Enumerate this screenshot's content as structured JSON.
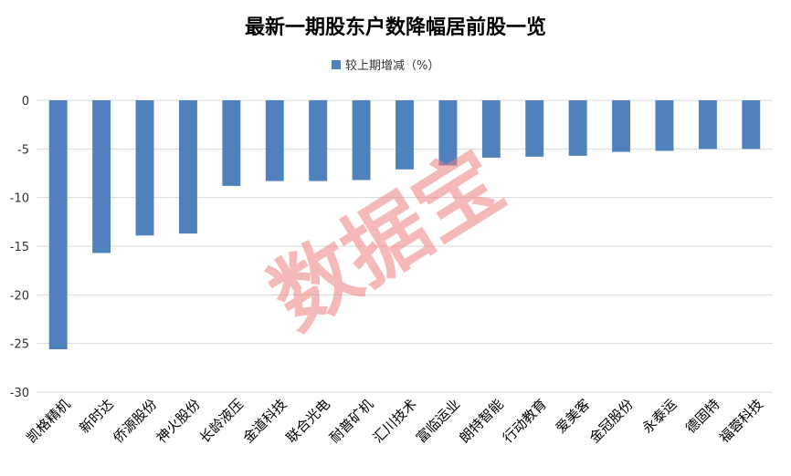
{
  "chart_data": {
    "type": "bar",
    "title": "最新一期股东户数降幅居前股一览",
    "categories": [
      "凯格精机",
      "新时达",
      "侨源股份",
      "神火股份",
      "长龄液压",
      "金道科技",
      "联合光电",
      "耐普矿机",
      "汇川技术",
      "富临运业",
      "朗特智能",
      "行动教育",
      "爱美客",
      "金冠股份",
      "永泰运",
      "德固特",
      "福蓉科技"
    ],
    "series": [
      {
        "name": "较上期增减（%）",
        "values": [
          -25.6,
          -15.7,
          -13.9,
          -13.7,
          -8.8,
          -8.3,
          -8.3,
          -8.2,
          -7.1,
          -6.7,
          -5.9,
          -5.8,
          -5.7,
          -5.3,
          -5.2,
          -5.0,
          -5.0
        ]
      }
    ],
    "xlabel": "",
    "ylabel": "",
    "ylim": [
      -30,
      0
    ],
    "yticks": [
      0,
      -5,
      -10,
      -15,
      -20,
      -25,
      -30
    ],
    "grid": true,
    "legend_position": "top-center",
    "bar_color": "#4f81bd",
    "grid_color": "#d9d9d9"
  },
  "watermark": "数据宝",
  "watermark_color": "#f08080"
}
